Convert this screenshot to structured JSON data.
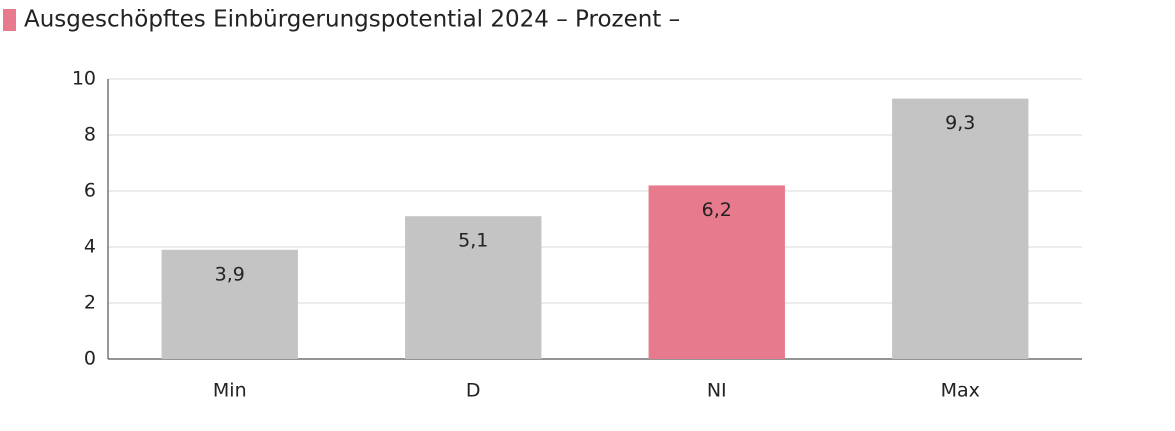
{
  "chart_data": {
    "type": "bar",
    "title": "Ausgeschöpftes Einbürgerungspotential 2024 – Prozent –",
    "categories": [
      "Min",
      "D",
      "NI",
      "Max"
    ],
    "values": [
      3.9,
      5.1,
      6.2,
      9.3
    ],
    "value_labels": [
      "3,9",
      "5,1",
      "6,2",
      "9,3"
    ],
    "colors": [
      "#c4c4c4",
      "#c4c4c4",
      "#e77a8c",
      "#c4c4c4"
    ],
    "ylim": [
      0,
      10
    ],
    "yticks": [
      0,
      2,
      4,
      6,
      8,
      10
    ],
    "grid": true
  }
}
